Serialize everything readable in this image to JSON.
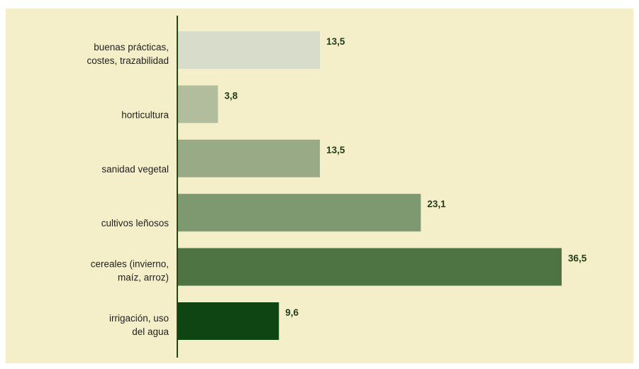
{
  "chart_data": {
    "type": "bar",
    "orientation": "horizontal",
    "title": "",
    "xlabel": "",
    "ylabel": "",
    "xlim": [
      0,
      40
    ],
    "grid": false,
    "legend": "none",
    "categories": [
      [
        "buenas prácticas,",
        "costes, trazabilidad"
      ],
      [
        "horticultura"
      ],
      [
        "sanidad vegetal"
      ],
      [
        "cultivos leñosos"
      ],
      [
        "cereales (invierno,",
        "maíz, arroz)"
      ],
      [
        "irrigación, uso",
        "del agua"
      ]
    ],
    "values": [
      13.5,
      3.8,
      13.5,
      23.1,
      36.5,
      9.6
    ],
    "value_labels": [
      "13,5",
      "3,8",
      "13,5",
      "23,1",
      "36,5",
      "9,6"
    ],
    "colors": [
      "#d8dccb",
      "#b1bd9c",
      "#98ab86",
      "#7e9970",
      "#4f7443",
      "#0f4512"
    ],
    "axis_color": "#1f4a14",
    "background": "#f5efc9"
  }
}
